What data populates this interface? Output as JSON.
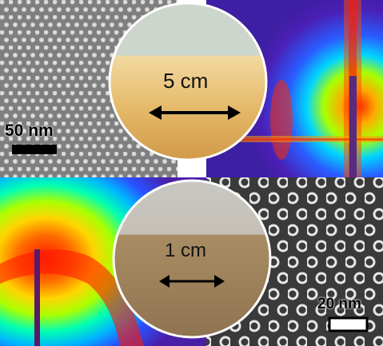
{
  "panels": {
    "top_left": {
      "scale_bar_label": "50 nm"
    },
    "bottom_right": {
      "scale_bar_label": "20 nm"
    }
  },
  "wafers": {
    "top": {
      "dimension_label": "5 cm",
      "arrow": "double-headed"
    },
    "bottom": {
      "dimension_label": "1 cm",
      "arrow": "double-headed"
    }
  },
  "colors": {
    "saxs_background": "#3d1fa3",
    "wafer_top_film": "#e0b46a",
    "wafer_top_clear": "#cdd6cc",
    "wafer_bottom_film": "#a88c63",
    "wafer_bottom_clear": "#c9c7c2"
  }
}
